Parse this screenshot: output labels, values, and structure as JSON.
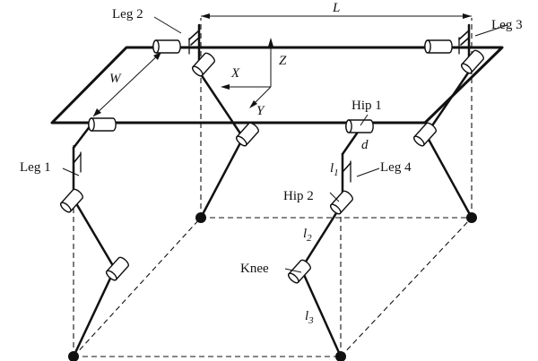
{
  "labels": {
    "leg1": "Leg 1",
    "leg2": "Leg 2",
    "leg3": "Leg 3",
    "leg4": "Leg 4",
    "hip1": "Hip 1",
    "hip2": "Hip 2",
    "knee": "Knee",
    "L": "L",
    "W": "W",
    "X": "X",
    "Y": "Y",
    "Z": "Z",
    "d": "d",
    "l1": "l",
    "l1_sub": "1",
    "l2": "l",
    "l2_sub": "2",
    "l3": "l",
    "l3_sub": "3"
  }
}
